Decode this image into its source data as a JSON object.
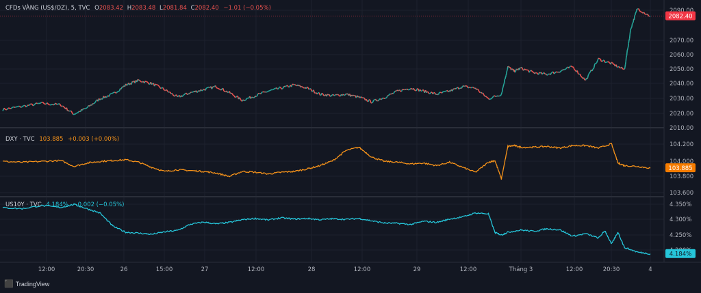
{
  "watermark": "TradingView",
  "panes": [
    {
      "legend": {
        "symbol": "CFDs VÀNG (US$/OZ), 5, TVC",
        "o_label": "O",
        "o": "2083.42",
        "h_label": "H",
        "h": "2083.48",
        "l_label": "L",
        "l": "2081.84",
        "c_label": "C",
        "c": "2082.40",
        "change": "−1.01 (−0.05%)"
      },
      "axis_ticks": [
        "2090.00",
        "2070.00",
        "2060.00",
        "2050.00",
        "2040.00",
        "2030.00",
        "2020.00",
        "2010.00"
      ],
      "last_label": "2082.40",
      "colors": {
        "up": "#26a69a",
        "down": "#ef5350",
        "label_bg": "#f23645"
      }
    },
    {
      "legend": {
        "symbol": "DXY · TVC",
        "value": "103.885",
        "change": "+0.003 (+0.00%)"
      },
      "axis_ticks": [
        "104.200",
        "104.000",
        "103.800",
        "103.600"
      ],
      "last_label": "103.885",
      "colors": {
        "line": "#f7931a",
        "label_bg": "#f57c00"
      }
    },
    {
      "legend": {
        "symbol": "US10Y · TVC",
        "value": "4.184%",
        "change": "−0.002 (−0.05%)"
      },
      "axis_ticks": [
        "4.350%",
        "4.300%",
        "4.250%",
        "4.200%"
      ],
      "last_label": "4.184%",
      "colors": {
        "line": "#26c6da",
        "label_bg": "#26c6da"
      }
    }
  ],
  "time_axis": [
    "12:00",
    "20:30",
    "26",
    "15:00",
    "27",
    "12:00",
    "28",
    "12:00",
    "29",
    "12:00",
    "Tháng 3",
    "12:00",
    "20:30",
    "4"
  ],
  "chart_data": [
    {
      "type": "line",
      "title": "CFDs VÀNG (US$/OZ), 5, TVC",
      "ylim": [
        2015,
        2090
      ],
      "x": [
        0,
        3,
        6,
        9,
        11,
        13,
        15,
        17,
        19,
        21,
        23,
        25,
        27,
        29,
        31,
        33,
        35,
        37,
        39,
        41,
        43,
        45,
        47,
        49,
        51,
        53,
        55,
        57,
        59,
        61,
        63,
        65,
        67,
        69,
        71,
        73,
        75,
        77,
        78,
        79,
        80,
        82,
        84,
        86,
        88,
        90,
        92,
        94,
        96,
        97,
        98,
        100
      ],
      "series": [
        {
          "values": [
            2022,
            2024,
            2026,
            2025,
            2019,
            2023,
            2029,
            2032,
            2038,
            2041,
            2039,
            2035,
            2030,
            2033,
            2035,
            2037,
            2033,
            2028,
            2031,
            2034,
            2036,
            2038,
            2036,
            2032,
            2031,
            2032,
            2030,
            2027,
            2030,
            2034,
            2036,
            2034,
            2032,
            2034,
            2037,
            2036,
            2029,
            2032,
            2050,
            2047,
            2049,
            2046,
            2045,
            2047,
            2050,
            2041,
            2055,
            2052,
            2048,
            2075,
            2088,
            2083
          ]
        }
      ]
    },
    {
      "type": "line",
      "title": "DXY · TVC",
      "ylim": [
        103.58,
        104.3
      ],
      "x": [
        0,
        3,
        6,
        9,
        11,
        13,
        15,
        17,
        19,
        21,
        23,
        25,
        27,
        29,
        31,
        33,
        35,
        37,
        39,
        41,
        43,
        45,
        47,
        49,
        51,
        53,
        55,
        57,
        59,
        61,
        63,
        65,
        67,
        69,
        71,
        73,
        75,
        76,
        77,
        78,
        79,
        80,
        82,
        84,
        86,
        88,
        90,
        92,
        94,
        95,
        96,
        98,
        100
      ],
      "series": [
        {
          "values": [
            103.97,
            103.96,
            103.97,
            103.98,
            103.91,
            103.95,
            103.97,
            103.98,
            103.99,
            103.96,
            103.9,
            103.85,
            103.87,
            103.86,
            103.85,
            103.83,
            103.79,
            103.85,
            103.84,
            103.82,
            103.84,
            103.85,
            103.88,
            103.92,
            103.98,
            104.1,
            104.14,
            104.02,
            103.97,
            103.96,
            103.94,
            103.95,
            103.92,
            103.96,
            103.9,
            103.84,
            103.96,
            103.98,
            103.76,
            104.15,
            104.16,
            104.14,
            104.14,
            104.15,
            104.13,
            104.16,
            104.16,
            104.13,
            104.18,
            103.95,
            103.92,
            103.91,
            103.89
          ]
        }
      ]
    },
    {
      "type": "line",
      "title": "US10Y · TVC",
      "ylim": [
        4.17,
        4.36
      ],
      "x": [
        0,
        3,
        6,
        9,
        11,
        13,
        15,
        17,
        19,
        21,
        23,
        25,
        27,
        29,
        31,
        33,
        35,
        37,
        39,
        41,
        43,
        45,
        47,
        49,
        51,
        53,
        55,
        57,
        59,
        61,
        63,
        65,
        67,
        69,
        71,
        73,
        75,
        76,
        77,
        78,
        80,
        82,
        84,
        86,
        88,
        90,
        92,
        93,
        94,
        95,
        96,
        98,
        100
      ],
      "series": [
        {
          "values": [
            4.335,
            4.332,
            4.342,
            4.336,
            4.346,
            4.332,
            4.318,
            4.275,
            4.255,
            4.252,
            4.248,
            4.256,
            4.261,
            4.281,
            4.288,
            4.282,
            4.287,
            4.296,
            4.3,
            4.295,
            4.302,
            4.298,
            4.3,
            4.296,
            4.299,
            4.297,
            4.3,
            4.292,
            4.285,
            4.284,
            4.28,
            4.291,
            4.287,
            4.298,
            4.305,
            4.318,
            4.315,
            4.254,
            4.246,
            4.255,
            4.262,
            4.258,
            4.266,
            4.263,
            4.242,
            4.25,
            4.236,
            4.26,
            4.216,
            4.255,
            4.205,
            4.19,
            4.184
          ]
        }
      ]
    }
  ]
}
